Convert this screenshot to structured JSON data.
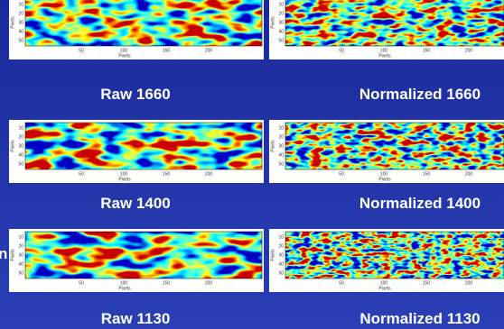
{
  "panels": [
    {
      "caption": "Raw 1660",
      "x_label": "Pixels",
      "y_label": "Pixels",
      "x_ticks": [
        "50",
        "100",
        "150",
        "200"
      ],
      "y_ticks": [
        "10",
        "20",
        "30",
        "40",
        "50"
      ]
    },
    {
      "caption": "Normalized 1660",
      "x_label": "Pixels",
      "y_label": "Pixels",
      "x_ticks": [
        "50",
        "100",
        "150",
        "200"
      ],
      "y_ticks": [
        "10",
        "20",
        "30",
        "40",
        "50"
      ]
    },
    {
      "caption": "Raw 1400",
      "x_label": "Pixels",
      "y_label": "Pixels",
      "x_ticks": [
        "50",
        "100",
        "150",
        "200"
      ],
      "y_ticks": [
        "10",
        "20",
        "30",
        "40",
        "50"
      ]
    },
    {
      "caption": "Normalized 1400",
      "x_label": "Pixels",
      "y_label": "Pixels",
      "x_ticks": [
        "50",
        "100",
        "150",
        "200"
      ],
      "y_ticks": [
        "10",
        "20",
        "30",
        "40",
        "50"
      ]
    },
    {
      "caption": "Raw 1130",
      "x_label": "Pixels",
      "y_label": "Pixels",
      "x_ticks": [
        "50",
        "100",
        "150",
        "200"
      ],
      "y_ticks": [
        "10",
        "20",
        "30",
        "40",
        "50"
      ]
    },
    {
      "caption": "Normalized 1130",
      "x_label": "Pixels",
      "y_label": "Pixels",
      "x_ticks": [
        "50",
        "100",
        "150",
        "200"
      ],
      "y_ticks": [
        "10",
        "20",
        "30",
        "40",
        "50"
      ]
    }
  ],
  "fragment": "n"
}
